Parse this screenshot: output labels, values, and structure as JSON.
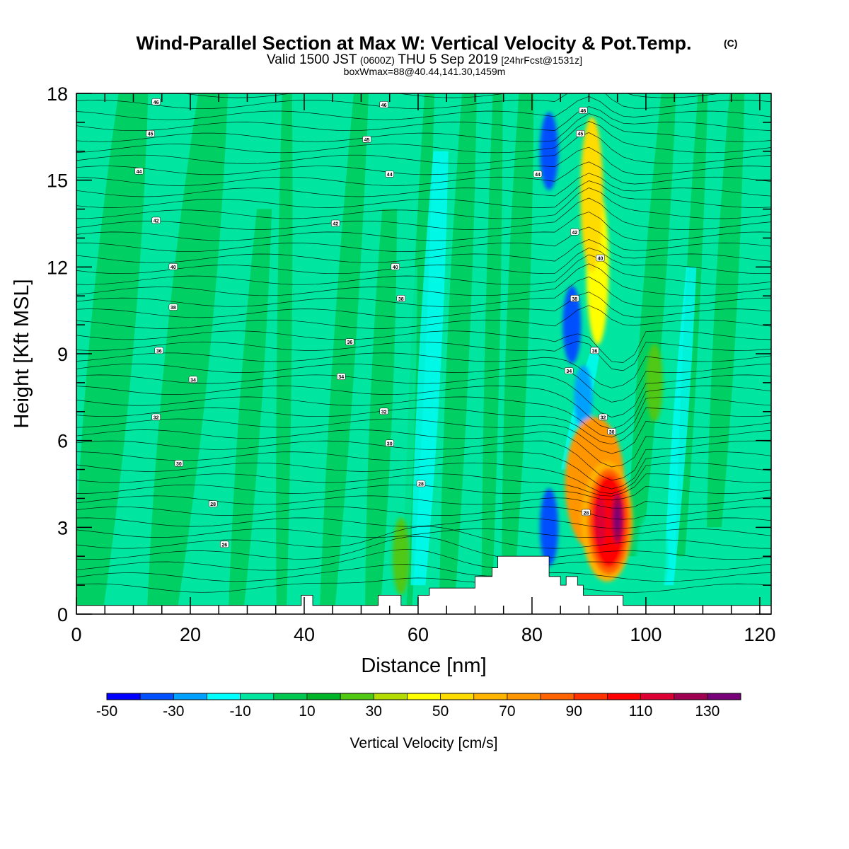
{
  "title": {
    "main": "Wind-Parallel Section at Max W: Vertical Velocity & Pot.Temp.",
    "copyright": "(C)",
    "line2_a": "Valid 1500 JST",
    "line2_b": "(0600Z)",
    "line2_c": "THU 5 Sep 2019",
    "line2_d": "[24hrFcst@1531z]",
    "line3": "boxWmax=88@40.44,141.30,1459m"
  },
  "chart_data": {
    "type": "heatmap",
    "xlabel": "Distance [nm]",
    "ylabel": "Height [Kft MSL]",
    "xlim": [
      0,
      122
    ],
    "ylim": [
      0,
      18
    ],
    "x_ticks": [
      "0",
      "20",
      "40",
      "60",
      "80",
      "100",
      "120"
    ],
    "y_ticks": [
      "0",
      "3",
      "6",
      "9",
      "12",
      "15",
      "18"
    ],
    "colorbar": {
      "title": "Vertical Velocity [cm/s]",
      "levels": [
        -50,
        -40,
        -30,
        -20,
        -10,
        0,
        10,
        20,
        30,
        40,
        50,
        60,
        70,
        80,
        90,
        100,
        110,
        120,
        130,
        140
      ],
      "tick_labels": [
        "-50",
        "-30",
        "-10",
        "10",
        "30",
        "50",
        "70",
        "90",
        "110",
        "130"
      ],
      "colors": [
        "#0000ff",
        "#0050ff",
        "#00a0ff",
        "#00ffff",
        "#00e6a0",
        "#00c850",
        "#00b428",
        "#50c814",
        "#b4dc00",
        "#ffff00",
        "#ffdc00",
        "#ffb400",
        "#ff9600",
        "#ff6400",
        "#ff3200",
        "#ff0000",
        "#dc0032",
        "#a00050",
        "#780078"
      ]
    },
    "vertical_velocity_features": [
      {
        "x": 92,
        "y": 3.2,
        "value": 110
      },
      {
        "x": 95,
        "y": 3.2,
        "value": 130
      },
      {
        "x": 91,
        "y": 4.5,
        "value": 70
      },
      {
        "x": 90.5,
        "y": 14.5,
        "value": 50
      },
      {
        "x": 91.5,
        "y": 12,
        "value": 40
      },
      {
        "x": 83,
        "y": 3,
        "value": -40
      },
      {
        "x": 83,
        "y": 16,
        "value": -40
      },
      {
        "x": 87,
        "y": 10,
        "value": -40
      },
      {
        "x": 89,
        "y": 7.5,
        "value": -30
      },
      {
        "x": 101,
        "y": 2,
        "value": -10
      },
      {
        "x": 57,
        "y": 2,
        "value": 20
      },
      {
        "x": 101.5,
        "y": 8,
        "value": 20
      }
    ],
    "theta_contour_labels": [
      {
        "x": 14,
        "y": 17.7,
        "text": "46"
      },
      {
        "x": 54,
        "y": 17.6,
        "text": "46"
      },
      {
        "x": 13,
        "y": 16.6,
        "text": "45"
      },
      {
        "x": 51,
        "y": 16.4,
        "text": "45"
      },
      {
        "x": 11,
        "y": 15.3,
        "text": "44"
      },
      {
        "x": 55,
        "y": 15.2,
        "text": "44"
      },
      {
        "x": 81,
        "y": 15.2,
        "text": "44"
      },
      {
        "x": 89,
        "y": 17.4,
        "text": "46"
      },
      {
        "x": 88.5,
        "y": 16.6,
        "text": "45"
      },
      {
        "x": 14,
        "y": 13.6,
        "text": "42"
      },
      {
        "x": 45.5,
        "y": 13.5,
        "text": "42"
      },
      {
        "x": 87.5,
        "y": 13.2,
        "text": "42"
      },
      {
        "x": 17,
        "y": 12,
        "text": "40"
      },
      {
        "x": 56,
        "y": 12,
        "text": "40"
      },
      {
        "x": 92,
        "y": 12.3,
        "text": "40"
      },
      {
        "x": 17,
        "y": 10.6,
        "text": "38"
      },
      {
        "x": 57,
        "y": 10.9,
        "text": "38"
      },
      {
        "x": 87.5,
        "y": 10.9,
        "text": "38"
      },
      {
        "x": 14.5,
        "y": 9.1,
        "text": "36"
      },
      {
        "x": 48,
        "y": 9.4,
        "text": "36"
      },
      {
        "x": 91,
        "y": 9.1,
        "text": "36"
      },
      {
        "x": 20.5,
        "y": 8.1,
        "text": "34"
      },
      {
        "x": 46.5,
        "y": 8.2,
        "text": "34"
      },
      {
        "x": 86.5,
        "y": 8.4,
        "text": "34"
      },
      {
        "x": 14,
        "y": 6.8,
        "text": "32"
      },
      {
        "x": 54,
        "y": 7.0,
        "text": "32"
      },
      {
        "x": 92.5,
        "y": 6.8,
        "text": "32"
      },
      {
        "x": 18,
        "y": 5.2,
        "text": "30"
      },
      {
        "x": 55,
        "y": 5.9,
        "text": "30"
      },
      {
        "x": 94,
        "y": 6.3,
        "text": "30"
      },
      {
        "x": 24,
        "y": 3.8,
        "text": "28"
      },
      {
        "x": 60.5,
        "y": 4.5,
        "text": "28"
      },
      {
        "x": 89.5,
        "y": 3.5,
        "text": "28"
      },
      {
        "x": 26,
        "y": 2.4,
        "text": "26"
      }
    ]
  }
}
